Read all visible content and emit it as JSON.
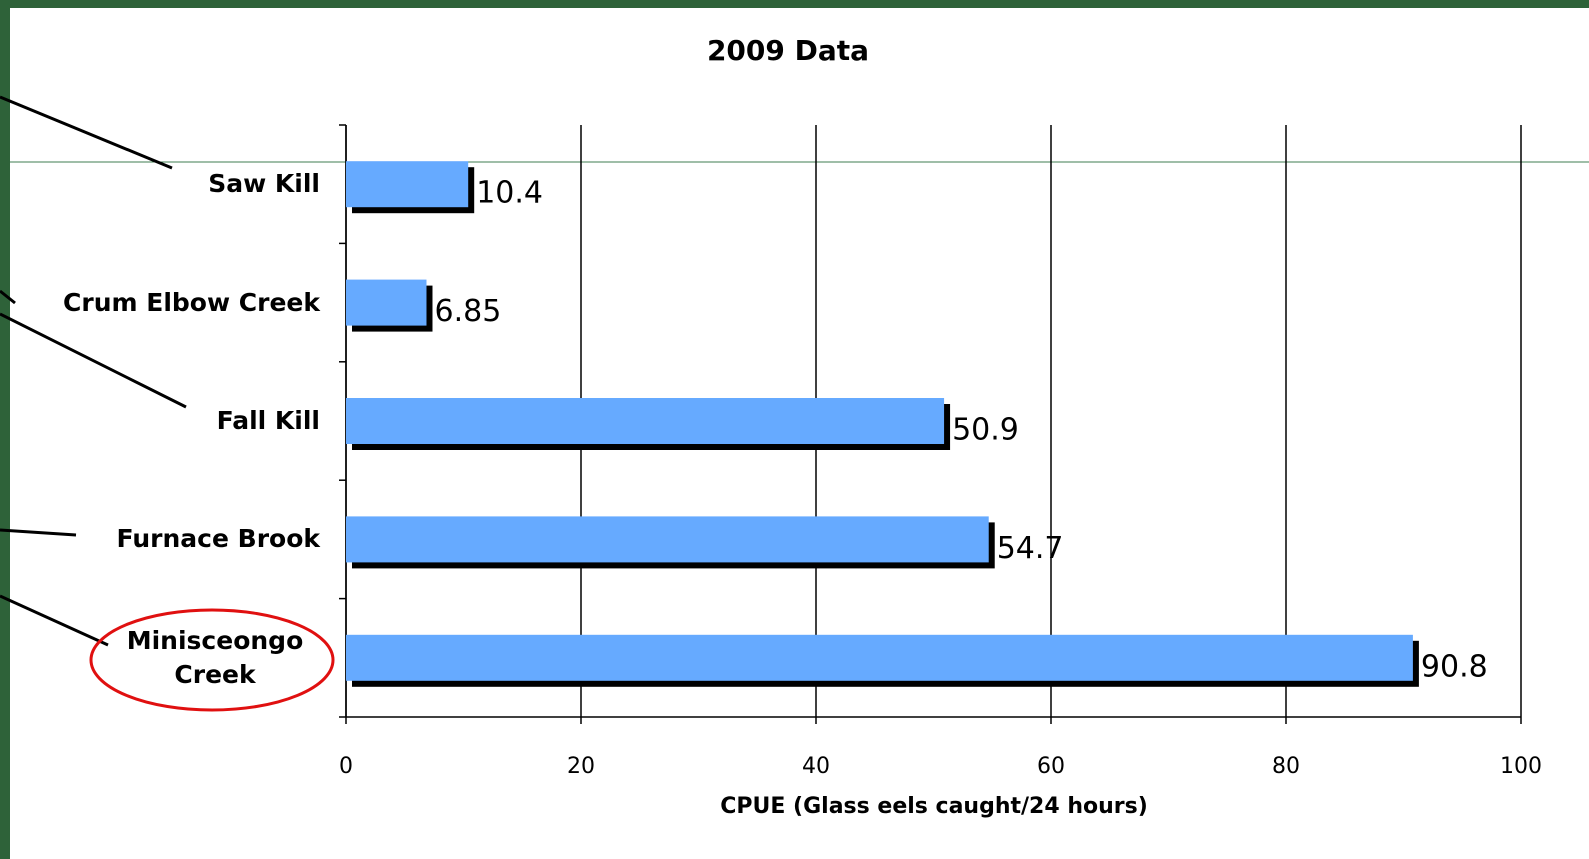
{
  "chart_data": {
    "type": "bar",
    "orientation": "horizontal",
    "title": "2009 Data",
    "categories": [
      "Saw Kill",
      "Crum Elbow Creek",
      "Fall Kill",
      "Furnace Brook",
      "Minisceongo Creek"
    ],
    "values": [
      10.4,
      6.85,
      50.9,
      54.7,
      90.8
    ],
    "color": "#66aaff",
    "x_label": "CPUE (Glass eels caught/24 hours)",
    "xlim": [
      0,
      100
    ],
    "xticks": [
      0,
      20,
      40,
      60,
      80,
      100
    ],
    "grid": true
  }
}
